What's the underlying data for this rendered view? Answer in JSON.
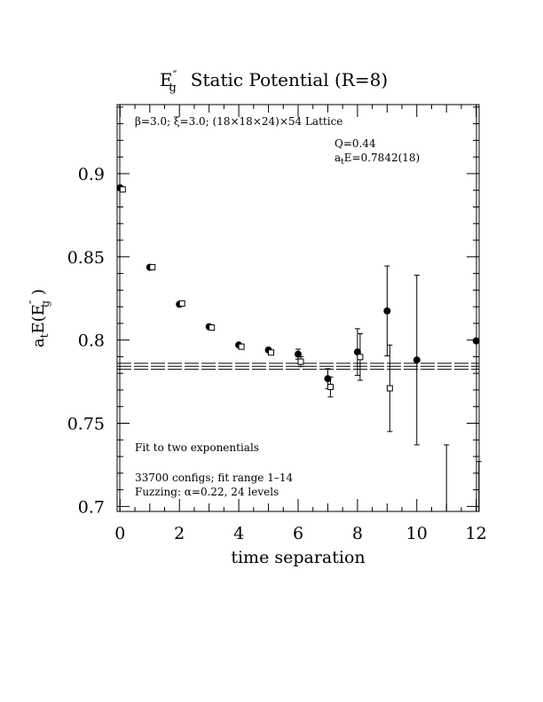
{
  "chart_data": {
    "type": "scatter",
    "title": "E″g  Static Potential (R=8)",
    "title_parts": {
      "base": "E",
      "prime": "″",
      "sub": "g",
      "rest": "Static Potential (R=8)"
    },
    "subtitle": "β=3.0; ξ=3.0; (18×18×24)×54 Lattice",
    "xlabel": "time separation",
    "ylabel": "aₜE(E″g)",
    "ylabel_parts": {
      "a": "a",
      "a_sub": "t",
      "E": "E(E",
      "prime": "″",
      "sub": "g",
      "close": ")"
    },
    "xlim": [
      -0.1,
      12.1
    ],
    "ylim": [
      0.697,
      0.9415
    ],
    "xticks": [
      0,
      2,
      4,
      6,
      8,
      10,
      12
    ],
    "xtick_labels": [
      "0",
      "2",
      "4",
      "6",
      "8",
      "10",
      "12"
    ],
    "yticks": [
      0.7,
      0.75,
      0.8,
      0.85,
      0.9
    ],
    "ytick_labels": [
      "0.7",
      "0.75",
      "0.8",
      "0.85",
      "0.9"
    ],
    "grid": false,
    "annotations": {
      "q": "Q=0.44",
      "energy_base": "a",
      "energy_sub": "t",
      "energy_rest": "E=0.7842(18)",
      "fit": "Fit to two exponentials",
      "configs": "33700 configs; fit range 1–14",
      "fuzzing": "Fuzzing: α=0.22, 24 levels"
    },
    "fit_line": {
      "value": 0.7842,
      "error": 0.0018
    },
    "series": [
      {
        "marker": "filled-circle",
        "points": [
          {
            "x": 0,
            "y": 0.8915
          },
          {
            "x": 1,
            "y": 0.8437
          },
          {
            "x": 2,
            "y": 0.8215
          },
          {
            "x": 3,
            "y": 0.808
          },
          {
            "x": 4,
            "y": 0.797
          },
          {
            "x": 5,
            "y": 0.794
          },
          {
            "x": 6,
            "y": 0.7915,
            "err": 0.003
          },
          {
            "x": 7,
            "y": 0.7768,
            "err": 0.006
          },
          {
            "x": 8,
            "y": 0.7928,
            "err": 0.014
          },
          {
            "x": 9,
            "y": 0.8175,
            "err": 0.027
          },
          {
            "x": 10,
            "y": 0.788,
            "err": 0.051
          },
          {
            "x": 11,
            "y": 0.681,
            "err": 0.056
          },
          {
            "x": 12,
            "y": 0.7995
          }
        ]
      },
      {
        "marker": "open-square",
        "points": [
          {
            "x": 0,
            "y": 0.8905
          },
          {
            "x": 1,
            "y": 0.8438
          },
          {
            "x": 2,
            "y": 0.822
          },
          {
            "x": 3,
            "y": 0.8075
          },
          {
            "x": 4,
            "y": 0.796
          },
          {
            "x": 5,
            "y": 0.7925
          },
          {
            "x": 6,
            "y": 0.787,
            "err": 0.003
          },
          {
            "x": 7,
            "y": 0.7718,
            "err": 0.006
          },
          {
            "x": 8,
            "y": 0.7898,
            "err": 0.014
          },
          {
            "x": 9,
            "y": 0.771,
            "err": 0.026
          },
          {
            "x": 12,
            "y": 0.675,
            "err": 0.052
          }
        ]
      }
    ]
  }
}
